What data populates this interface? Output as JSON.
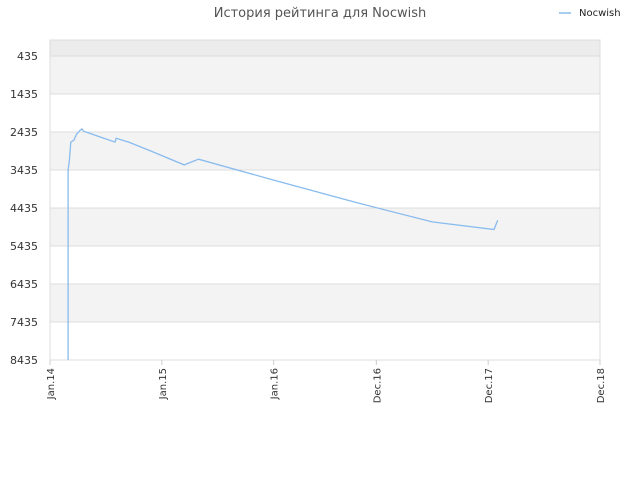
{
  "chart_data": {
    "type": "line",
    "title": "История рейтинга для Nocwish",
    "xlabel": "",
    "ylabel": "",
    "y_inverted": true,
    "ylim": [
      435,
      8435
    ],
    "y_ticks": [
      "435",
      "1435",
      "2435",
      "3435",
      "4435",
      "5435",
      "6435",
      "7435",
      "8435"
    ],
    "x_ticks": [
      {
        "label": "Jan.14",
        "date": "2014-01-01"
      },
      {
        "label": "Jan.15",
        "date": "2015-01-01"
      },
      {
        "label": "Jan.16",
        "date": "2016-01-01"
      },
      {
        "label": "Dec.16",
        "date": "2016-12-01"
      },
      {
        "label": "Dec.17",
        "date": "2017-12-01"
      },
      {
        "label": "Dec.18",
        "date": "2018-12-01"
      }
    ],
    "xlim": [
      "2014-01-01",
      "2018-12-01"
    ],
    "grid": true,
    "legend_position": "top-right",
    "colors": {
      "series": "#88bbee",
      "band": "#f3f3f3",
      "top_band": "#ececec",
      "grid": "#dddddd"
    },
    "series": [
      {
        "name": "Nocwish",
        "points": [
          [
            "2014-03-01",
            8435
          ],
          [
            "2014-03-01",
            3435
          ],
          [
            "2014-03-05",
            3200
          ],
          [
            "2014-03-10",
            2700
          ],
          [
            "2014-03-20",
            2650
          ],
          [
            "2014-03-28",
            2500
          ],
          [
            "2014-04-08",
            2400
          ],
          [
            "2014-04-15",
            2350
          ],
          [
            "2014-04-20",
            2410
          ],
          [
            "2014-06-01",
            2530
          ],
          [
            "2014-08-01",
            2700
          ],
          [
            "2014-08-05",
            2600
          ],
          [
            "2014-09-15",
            2700
          ],
          [
            "2014-12-01",
            2950
          ],
          [
            "2015-03-15",
            3300
          ],
          [
            "2015-05-01",
            3150
          ],
          [
            "2016-01-01",
            3700
          ],
          [
            "2016-10-01",
            4300
          ],
          [
            "2017-06-01",
            4800
          ],
          [
            "2017-12-20",
            5000
          ],
          [
            "2018-01-01",
            4760
          ]
        ]
      }
    ]
  }
}
